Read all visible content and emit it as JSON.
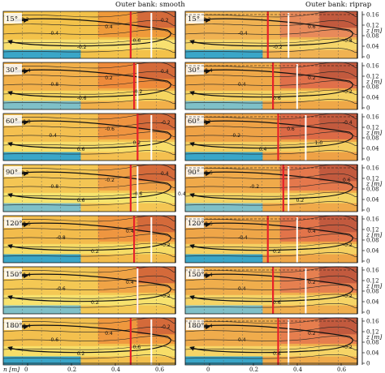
{
  "figure": {
    "left_title": "Outer bank: smooth",
    "right_title": "Outer bank: riprap",
    "panel_labels": [
      "15°",
      "30°",
      "60°",
      "90°",
      "120°",
      "150°",
      "180°"
    ],
    "x_axis_label": "n [m]",
    "x_ticks": [
      "0",
      "0.2",
      "0.4",
      "0.6"
    ],
    "z_axis_label": "z [m]",
    "z_ticks": [
      "0.16",
      "0.12",
      "0.08",
      "0.04",
      "0"
    ],
    "left_side_label": "0.4"
  },
  "colors": {
    "red_line": "#e8202a",
    "white_line": "#ffffff",
    "contour": "#222222"
  },
  "panels_left": [
    {
      "label_idx": 0,
      "contours": [
        "0.2",
        "-0.4",
        "-0.2",
        "0.4",
        "0.6",
        "0.2"
      ],
      "bg": [
        "#ef9a3a",
        "#f3c24a",
        "#f8e070"
      ]
    },
    {
      "label_idx": 1,
      "contours": [
        "-0.4",
        "-0.8",
        "-0.6",
        "0.2",
        "-0.2",
        "0.4"
      ],
      "bg": [
        "#ee8a3a",
        "#f2b04a",
        "#f6d660"
      ]
    },
    {
      "label_idx": 2,
      "contours": [
        "-0.8",
        "0.4",
        "0.6",
        "-0.6",
        "0.2",
        "-0.2"
      ],
      "bg": [
        "#ef9440",
        "#f4c050",
        "#f8de6a"
      ]
    },
    {
      "label_idx": 3,
      "contours": [
        "0.2",
        "-0.8",
        "0.6",
        "-0.2",
        "-0.6",
        "0.4"
      ],
      "bg": [
        "#f0a046",
        "#f4c654",
        "#f6e46e"
      ]
    },
    {
      "label_idx": 4,
      "contours": [
        "-0.6",
        "-0.8",
        "0.2",
        "0.4",
        "-0.2"
      ],
      "bg": [
        "#ef9640",
        "#f3bc4c",
        "#f6dc66"
      ]
    },
    {
      "label_idx": 5,
      "contours": [
        "-0.4",
        "-0.6",
        "0.2",
        "0.4",
        "-0.2"
      ],
      "bg": [
        "#f0a446",
        "#f4c854",
        "#f7e26e"
      ]
    },
    {
      "label_idx": 6,
      "contours": [
        "-0.4",
        "-0.6",
        "0.2",
        "0.4",
        "0.6",
        "-0.2"
      ],
      "bg": [
        "#ef983e",
        "#f3c04e",
        "#f7de68"
      ]
    }
  ],
  "panels_right": [
    {
      "label_idx": 0,
      "contours": [
        "0.2",
        "-0.4",
        "-0.2",
        "0.6",
        "-0.8"
      ],
      "bg": [
        "#e88a5a",
        "#f0b252",
        "#f6d66a"
      ]
    },
    {
      "label_idx": 1,
      "contours": [
        "-0.4",
        "0.4",
        "0.6",
        "0.2",
        "-0.2"
      ],
      "bg": [
        "#e0704a",
        "#efa848",
        "#f5d262"
      ]
    },
    {
      "label_idx": 2,
      "contours": [
        "0.2",
        "-0.2",
        "0.4",
        "0.6",
        "1.0",
        "-0.4"
      ],
      "bg": [
        "#dc6a46",
        "#eea246",
        "#f4ce60"
      ]
    },
    {
      "label_idx": 3,
      "contours": [
        "-0.6",
        "-0.2",
        "0.2",
        "0.6"
      ],
      "bg": [
        "#e4784c",
        "#f0aa4a",
        "#f5d464"
      ]
    },
    {
      "label_idx": 4,
      "contours": [
        "-0.6",
        "-0.4",
        "0.2",
        "0.4",
        "-0.2"
      ],
      "bg": [
        "#e2744a",
        "#efa648",
        "#f5d062"
      ]
    },
    {
      "label_idx": 5,
      "contours": [
        "-0.4",
        "0.4",
        "0.6",
        "0.2",
        "-0.2"
      ],
      "bg": [
        "#e68050",
        "#f0ae4c",
        "#f6d466"
      ]
    },
    {
      "label_idx": 6,
      "contours": [
        "-0.4",
        "0.4",
        "0.6",
        "0.2",
        "-0.2"
      ],
      "bg": [
        "#e67e4e",
        "#f0ac4c",
        "#f6d466"
      ]
    }
  ]
}
